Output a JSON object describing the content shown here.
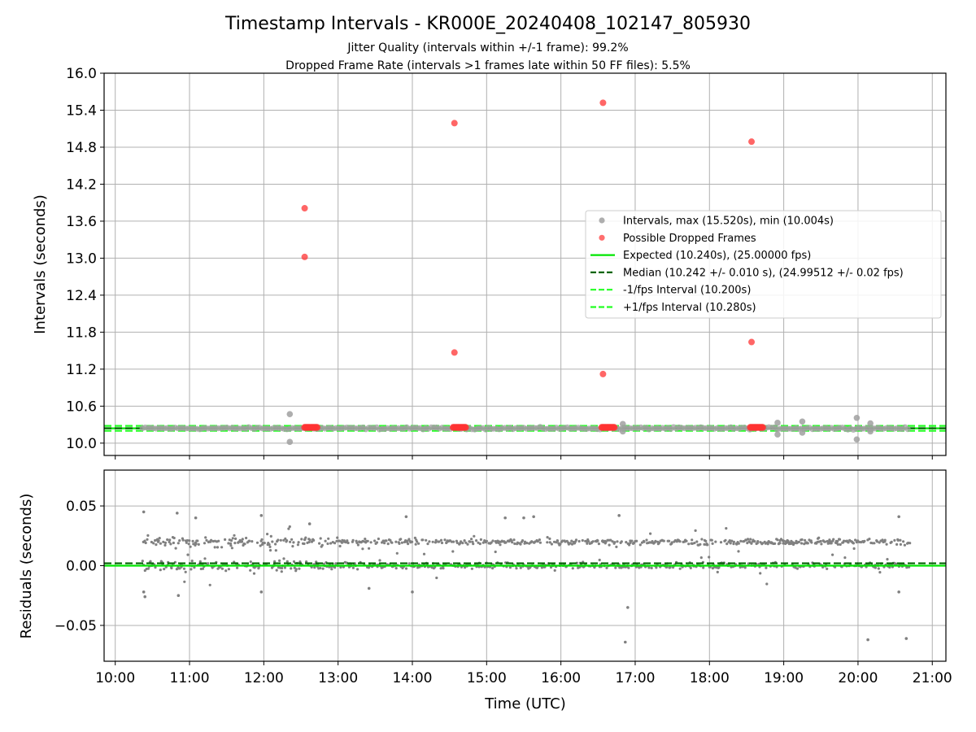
{
  "figure": {
    "title": "Timestamp Intervals - KR000E_20240408_102147_805930",
    "subtitle_1": "Jitter Quality (intervals within +/-1 frame): 99.2%",
    "subtitle_2": "Dropped Frame Rate (intervals >1 frames late within 50 FF files): 5.5%"
  },
  "colors": {
    "intervals": "#808080",
    "dropped": "#ff3333",
    "expected": "#00e600",
    "median": "#006400",
    "fps_bounds": "#22ff22",
    "grid": "#b0b0b0",
    "axes": "#000000"
  },
  "chart_data": [
    {
      "type": "scatter",
      "panel": "top",
      "ylabel": "Intervals (seconds)",
      "ylim": [
        9.8,
        16.0
      ],
      "yticks": [
        10.0,
        10.6,
        11.2,
        11.8,
        12.4,
        13.0,
        13.6,
        14.2,
        14.8,
        15.4,
        16.0
      ],
      "ytick_labels": [
        "10.0",
        "10.6",
        "11.2",
        "11.8",
        "12.4",
        "13.0",
        "13.6",
        "14.2",
        "14.8",
        "15.4",
        "16.0"
      ],
      "grid": true,
      "legend_position": "center-right",
      "legend": [
        {
          "label": "Intervals, max (15.520s), min (10.004s)",
          "kind": "marker",
          "color": "#a0a0a0"
        },
        {
          "label": "Possible Dropped Frames",
          "kind": "marker",
          "color": "#ff5555"
        },
        {
          "label": "Expected (10.240s), (25.00000 fps)",
          "kind": "solid",
          "color": "#00e600"
        },
        {
          "label": "Median (10.242 +/- 0.010 s), (24.99512 +/- 0.02 fps)",
          "kind": "dashed",
          "color": "#006400"
        },
        {
          "label": "-1/fps Interval (10.200s)",
          "kind": "dashed",
          "color": "#22ff22"
        },
        {
          "label": "+1/fps Interval (10.280s)",
          "kind": "dashed",
          "color": "#22ff22"
        }
      ],
      "reference_lines": {
        "expected": 10.24,
        "median": 10.242,
        "minus_1_fps": 10.2,
        "plus_1_fps": 10.28
      },
      "series": [
        {
          "name": "Intervals, max (15.520s), min (10.004s)",
          "x_range": [
            "10:22",
            "20:42"
          ],
          "band": [
            10.2,
            10.29
          ],
          "outliers": [
            {
              "x": "12:21",
              "y": 10.47
            },
            {
              "x": "12:21",
              "y": 10.02
            },
            {
              "x": "18:55",
              "y": 10.33
            },
            {
              "x": "18:55",
              "y": 10.14
            },
            {
              "x": "19:15",
              "y": 10.35
            },
            {
              "x": "19:15",
              "y": 10.17
            },
            {
              "x": "19:59",
              "y": 10.41
            },
            {
              "x": "19:59",
              "y": 10.06
            },
            {
              "x": "20:10",
              "y": 10.32
            },
            {
              "x": "20:10",
              "y": 10.19
            },
            {
              "x": "16:50",
              "y": 10.31
            },
            {
              "x": "16:50",
              "y": 10.19
            }
          ]
        },
        {
          "name": "Possible Dropped Frames",
          "points": [
            {
              "x": "12:33",
              "y": 13.81
            },
            {
              "x": "12:33",
              "y": 13.02
            },
            {
              "x": "14:34",
              "y": 15.19
            },
            {
              "x": "14:34",
              "y": 11.47
            },
            {
              "x": "16:34",
              "y": 15.52
            },
            {
              "x": "16:34",
              "y": 11.12
            },
            {
              "x": "18:34",
              "y": 14.89
            },
            {
              "x": "18:34",
              "y": 11.64
            }
          ],
          "clusters_at_10_26": [
            {
              "from": "12:33",
              "to": "12:43"
            },
            {
              "from": "14:33",
              "to": "14:43"
            },
            {
              "from": "16:33",
              "to": "16:43"
            },
            {
              "from": "18:33",
              "to": "18:43"
            }
          ]
        }
      ]
    },
    {
      "type": "scatter",
      "panel": "bottom",
      "ylabel": "Residuals (seconds)",
      "xlabel": "Time (UTC)",
      "ylim": [
        -0.08,
        0.08
      ],
      "yticks": [
        -0.05,
        0.0,
        0.05
      ],
      "ytick_labels": [
        "−0.05",
        "0.00",
        "0.05"
      ],
      "xticks": [
        "10:00",
        "11:00",
        "12:00",
        "13:00",
        "14:00",
        "15:00",
        "16:00",
        "17:00",
        "18:00",
        "19:00",
        "20:00",
        "21:00"
      ],
      "xlim": [
        "09:51",
        "21:11"
      ],
      "grid": true,
      "reference_lines": {
        "expected": 0.0,
        "median": 0.002
      },
      "series": [
        {
          "name": "Residuals",
          "x_range": [
            "10:22",
            "20:42"
          ],
          "upper_band": 0.02,
          "lower_band": 0.0,
          "outliers": [
            {
              "x": "10:23",
              "y": 0.045
            },
            {
              "x": "10:23",
              "y": -0.022
            },
            {
              "x": "10:24",
              "y": -0.026
            },
            {
              "x": "10:50",
              "y": 0.044
            },
            {
              "x": "10:51",
              "y": -0.025
            },
            {
              "x": "11:05",
              "y": 0.04
            },
            {
              "x": "11:58",
              "y": 0.042
            },
            {
              "x": "11:58",
              "y": -0.022
            },
            {
              "x": "12:37",
              "y": 0.035
            },
            {
              "x": "13:25",
              "y": -0.019
            },
            {
              "x": "13:55",
              "y": 0.041
            },
            {
              "x": "14:00",
              "y": -0.022
            },
            {
              "x": "15:15",
              "y": 0.04
            },
            {
              "x": "15:30",
              "y": 0.04
            },
            {
              "x": "15:38",
              "y": 0.041
            },
            {
              "x": "16:47",
              "y": 0.042
            },
            {
              "x": "16:52",
              "y": -0.064
            },
            {
              "x": "16:54",
              "y": -0.035
            },
            {
              "x": "20:08",
              "y": -0.062
            },
            {
              "x": "20:33",
              "y": 0.041
            },
            {
              "x": "20:33",
              "y": -0.022
            },
            {
              "x": "20:39",
              "y": -0.061
            }
          ]
        }
      ]
    }
  ]
}
